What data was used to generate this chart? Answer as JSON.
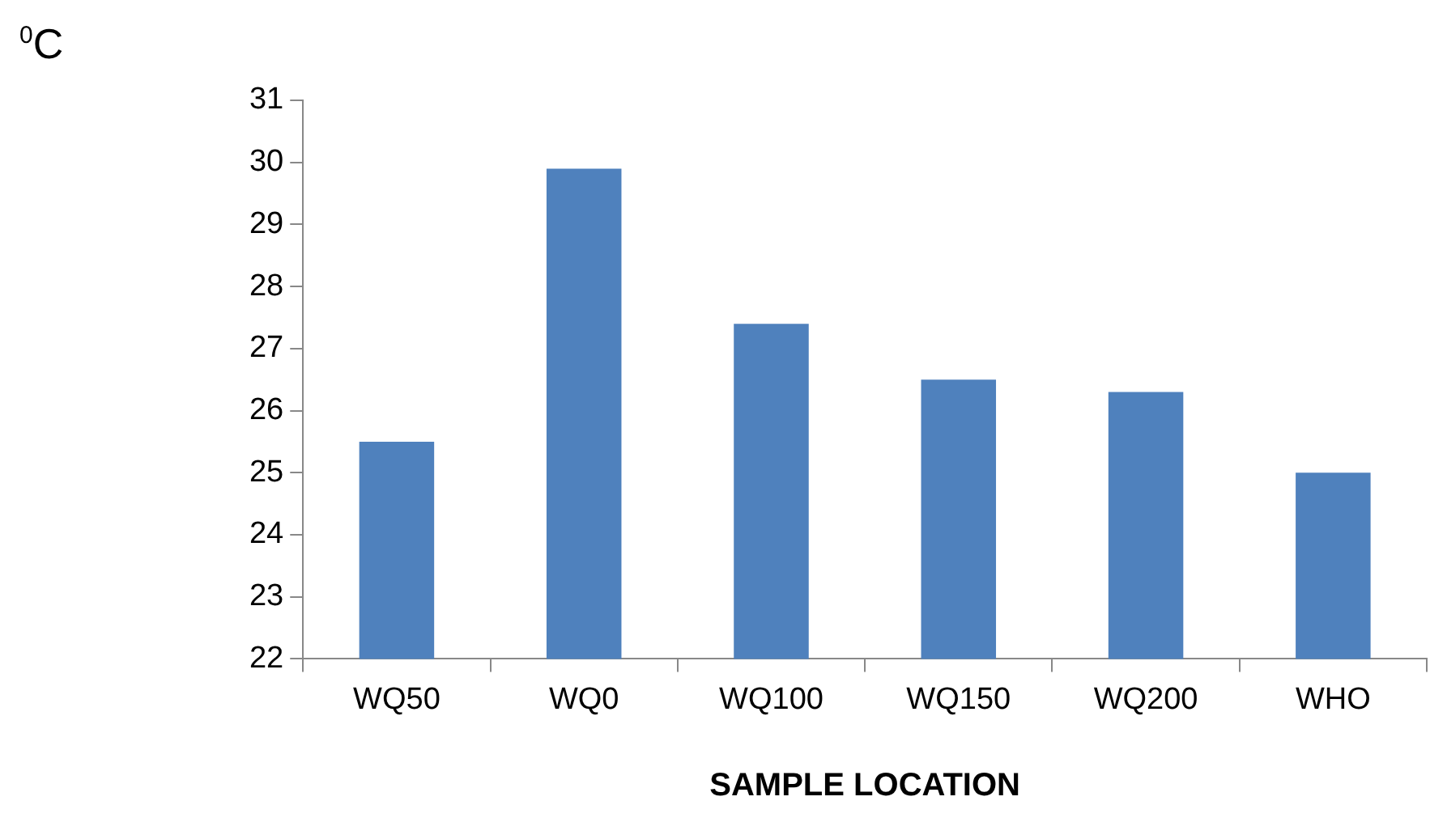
{
  "chart_data": {
    "type": "bar",
    "ylabel": "$^{0}$C",
    "xlabel": "SAMPLE LOCATION",
    "categories": [
      "WQ50",
      "WQ0",
      "WQ100",
      "WQ150",
      "WQ200",
      "WHO"
    ],
    "values": [
      25.5,
      29.9,
      27.4,
      26.5,
      26.3,
      25.0
    ],
    "color": "#4f81bd",
    "ylim": [
      22,
      31
    ],
    "yticks": [
      22,
      23,
      24,
      25,
      26,
      27,
      28,
      29,
      30,
      31
    ],
    "legend": false
  }
}
